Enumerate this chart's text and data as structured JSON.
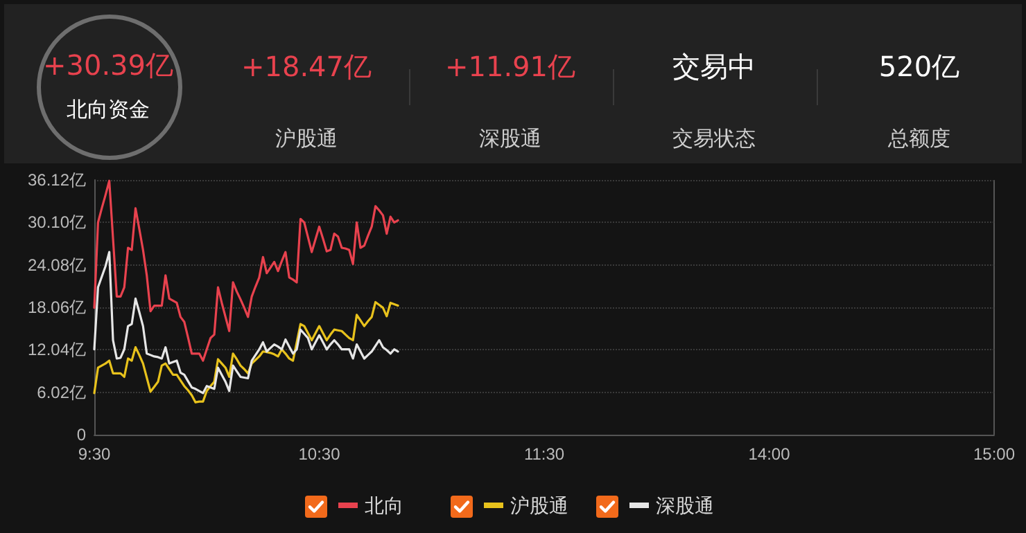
{
  "chart_data": {
    "type": "line",
    "annotations": [
      "+30.39亿",
      "北向资金",
      "+18.47亿",
      "沪股通",
      "+11.91亿",
      "深股通",
      "交易中",
      "交易状态",
      "520亿",
      "总额度"
    ],
    "categories": [
      "9:30",
      null,
      null,
      null,
      null,
      null,
      null,
      null,
      null,
      null,
      null,
      null,
      null,
      null,
      null,
      null,
      null,
      null,
      null,
      null,
      null,
      null,
      null,
      null,
      null,
      null,
      null,
      null,
      null,
      null,
      null,
      null,
      null,
      null,
      null,
      null,
      null,
      null,
      null,
      null,
      null,
      null,
      null,
      null,
      null,
      null,
      null,
      null,
      null,
      null,
      null,
      null,
      null,
      null,
      null,
      null,
      null,
      null,
      null,
      null,
      "10:30",
      null,
      null,
      null,
      null,
      null,
      null,
      null,
      null,
      null,
      null,
      null,
      null,
      null,
      null,
      null,
      null,
      null,
      null,
      null,
      null,
      null,
      null,
      null,
      null,
      null,
      null,
      null,
      null,
      null,
      null,
      null,
      null,
      null,
      null,
      null,
      null,
      null,
      null,
      null,
      null,
      null,
      null,
      null,
      null,
      null,
      null,
      null,
      null,
      null,
      null,
      null,
      null,
      null,
      null,
      null,
      null,
      null,
      null,
      null,
      "11:30",
      null,
      null,
      null,
      null,
      null,
      null,
      null,
      null,
      null,
      null,
      null,
      null,
      null,
      null,
      null,
      null,
      null,
      null,
      null,
      null,
      null,
      null,
      null,
      null,
      null,
      null,
      null,
      null,
      null,
      null,
      null,
      null,
      null,
      null,
      null,
      null,
      null,
      null,
      null,
      null,
      null,
      null,
      null,
      null,
      null,
      null,
      null,
      null,
      null,
      null,
      null,
      null,
      null,
      null,
      null,
      null,
      null,
      null,
      null,
      "14:00",
      null,
      null,
      null,
      null,
      null,
      null,
      null,
      null,
      null,
      null,
      null,
      null,
      null,
      null,
      null,
      null,
      null,
      null,
      null,
      null,
      null,
      null,
      null,
      null,
      null,
      null,
      null,
      null,
      null,
      null,
      null,
      null,
      null,
      null,
      null,
      null,
      null,
      null,
      null,
      null,
      null,
      null,
      null,
      null,
      null,
      null,
      null,
      null,
      null,
      null,
      null,
      null,
      null,
      null,
      null,
      null,
      null,
      null,
      null,
      "15:00"
    ],
    "ylim": [
      0,
      36.12
    ],
    "yticks": [
      {
        "value": 0,
        "label": "0"
      },
      {
        "value": 6.02,
        "label": "6.02亿"
      },
      {
        "value": 12.04,
        "label": "12.04亿"
      },
      {
        "value": 18.06,
        "label": "18.06亿"
      },
      {
        "value": 24.08,
        "label": "24.08亿"
      },
      {
        "value": 30.1,
        "label": "30.10亿"
      },
      {
        "value": 36.12,
        "label": "36.12亿"
      }
    ],
    "grid": "y",
    "legend": "bottom",
    "marker": "none",
    "line_style": "solid",
    "series": [
      {
        "name": "北向",
        "color": "#e8424e",
        "values": [
          18.0,
          30.1,
          32.1,
          34.0,
          36.0,
          27.8,
          19.6,
          19.6,
          20.9,
          26.5,
          26.2,
          32.1,
          29.2,
          26.2,
          22.6,
          17.5,
          18.3,
          18.3,
          18.3,
          22.6,
          19.3,
          19.0,
          18.7,
          16.7,
          16.0,
          13.8,
          11.5,
          11.5,
          11.5,
          10.5,
          12.1,
          13.7,
          14.2,
          20.9,
          18.7,
          16.7,
          14.7,
          21.6,
          20.3,
          19.2,
          18.0,
          16.7,
          19.6,
          21.0,
          22.3,
          25.2,
          22.9,
          23.7,
          24.5,
          23.2,
          24.6,
          25.9,
          22.3,
          22.0,
          21.6,
          30.6,
          30.1,
          28.0,
          25.9,
          27.7,
          29.5,
          27.8,
          26.0,
          26.2,
          28.5,
          28.1,
          26.5,
          26.4,
          26.2,
          24.2,
          30.1,
          26.5,
          26.8,
          28.2,
          29.5,
          32.4,
          31.8,
          31.1,
          28.5,
          30.9,
          30.1,
          30.4,
          null,
          null,
          null,
          null,
          null,
          null,
          null,
          null,
          null,
          null,
          null,
          null,
          null,
          null,
          null,
          null,
          null,
          null,
          null,
          null,
          null,
          null,
          null,
          null,
          null,
          null,
          null,
          null,
          null,
          null,
          null,
          null,
          null,
          null,
          null,
          null,
          null,
          null,
          null,
          null,
          null,
          null,
          null,
          null,
          null,
          null,
          null,
          null,
          null,
          null,
          null,
          null,
          null,
          null,
          null,
          null,
          null,
          null,
          null,
          null,
          null,
          null,
          null,
          null,
          null,
          null,
          null,
          null,
          null,
          null,
          null,
          null,
          null,
          null,
          null,
          null,
          null,
          null,
          null,
          null,
          null,
          null,
          null,
          null,
          null,
          null,
          null,
          null,
          null,
          null,
          null,
          null,
          null,
          null,
          null,
          null,
          null,
          null,
          null,
          null,
          null,
          null,
          null,
          null,
          null,
          null,
          null,
          null,
          null,
          null,
          null,
          null,
          null,
          null,
          null,
          null,
          null,
          null,
          null,
          null,
          null,
          null,
          null,
          null,
          null,
          null,
          null,
          null,
          null,
          null,
          null,
          null,
          null,
          null,
          null,
          null,
          null,
          null,
          null,
          null,
          null,
          null,
          null,
          null,
          null,
          null,
          null,
          null,
          null,
          null,
          null,
          null,
          null,
          null,
          null,
          null,
          null,
          null,
          null
        ]
      },
      {
        "name": "沪股通",
        "color": "#e8c21c",
        "values": [
          5.9,
          9.5,
          9.8,
          10.1,
          10.5,
          8.7,
          8.7,
          8.7,
          8.2,
          10.8,
          10.5,
          12.4,
          11.3,
          10.1,
          8.1,
          6.1,
          6.8,
          7.5,
          9.8,
          10.1,
          9.3,
          8.5,
          8.5,
          7.7,
          6.9,
          6.3,
          5.6,
          4.6,
          4.7,
          4.7,
          6.2,
          6.9,
          7.5,
          10.7,
          10.1,
          9.5,
          8.2,
          11.5,
          10.7,
          9.8,
          9.3,
          8.7,
          10.1,
          10.6,
          11.1,
          11.8,
          11.7,
          11.6,
          11.4,
          11.1,
          12.1,
          11.5,
          10.8,
          10.5,
          13.1,
          15.7,
          15.4,
          14.4,
          13.4,
          14.4,
          15.4,
          14.4,
          13.4,
          14.2,
          14.9,
          14.8,
          14.7,
          14.2,
          13.7,
          13.4,
          17.0,
          16.2,
          15.4,
          16.1,
          16.7,
          18.8,
          18.4,
          18.0,
          16.8,
          18.7,
          18.5,
          18.3,
          null,
          null,
          null,
          null,
          null,
          null,
          null,
          null,
          null,
          null,
          null,
          null,
          null,
          null,
          null,
          null,
          null,
          null,
          null,
          null,
          null,
          null,
          null,
          null,
          null,
          null,
          null,
          null,
          null,
          null,
          null,
          null,
          null,
          null,
          null,
          null,
          null,
          null,
          null,
          null,
          null,
          null,
          null,
          null,
          null,
          null,
          null,
          null,
          null,
          null,
          null,
          null,
          null,
          null,
          null,
          null,
          null,
          null,
          null,
          null,
          null,
          null,
          null,
          null,
          null,
          null,
          null,
          null,
          null,
          null,
          null,
          null,
          null,
          null,
          null,
          null,
          null,
          null,
          null,
          null,
          null,
          null,
          null,
          null,
          null,
          null,
          null,
          null,
          null,
          null,
          null,
          null,
          null,
          null,
          null,
          null,
          null,
          null,
          null,
          null,
          null,
          null,
          null,
          null,
          null,
          null,
          null,
          null,
          null,
          null,
          null,
          null,
          null,
          null,
          null,
          null,
          null,
          null,
          null,
          null,
          null,
          null,
          null,
          null,
          null,
          null,
          null,
          null,
          null,
          null,
          null,
          null,
          null,
          null,
          null,
          null,
          null,
          null,
          null,
          null,
          null,
          null,
          null,
          null,
          null,
          null,
          null,
          null,
          null,
          null,
          null,
          null,
          null,
          null,
          null,
          null,
          null,
          null,
          null
        ]
      },
      {
        "name": "深股通",
        "color": "#e6e6e6",
        "values": [
          12.1,
          20.9,
          22.4,
          23.9,
          25.9,
          13.4,
          10.8,
          10.9,
          12.1,
          15.4,
          15.7,
          19.3,
          17.4,
          15.4,
          11.5,
          11.3,
          11.1,
          11.0,
          10.8,
          12.4,
          10.1,
          10.3,
          10.5,
          8.8,
          8.5,
          7.6,
          6.7,
          6.5,
          6.2,
          5.9,
          6.9,
          6.7,
          6.5,
          9.5,
          8.5,
          7.5,
          6.2,
          9.8,
          9.0,
          8.2,
          8.1,
          8.0,
          10.5,
          11.3,
          12.1,
          13.1,
          11.8,
          12.3,
          12.8,
          12.5,
          12.1,
          13.5,
          12.5,
          11.5,
          12.1,
          14.9,
          14.3,
          13.7,
          12.1,
          13.1,
          14.1,
          13.1,
          12.1,
          12.8,
          13.4,
          12.8,
          12.1,
          12.1,
          12.1,
          10.8,
          12.8,
          11.8,
          10.8,
          11.3,
          11.8,
          12.6,
          13.4,
          12.4,
          12.0,
          11.5,
          12.1,
          11.8,
          null,
          null,
          null,
          null,
          null,
          null,
          null,
          null,
          null,
          null,
          null,
          null,
          null,
          null,
          null,
          null,
          null,
          null,
          null,
          null,
          null,
          null,
          null,
          null,
          null,
          null,
          null,
          null,
          null,
          null,
          null,
          null,
          null,
          null,
          null,
          null,
          null,
          null,
          null,
          null,
          null,
          null,
          null,
          null,
          null,
          null,
          null,
          null,
          null,
          null,
          null,
          null,
          null,
          null,
          null,
          null,
          null,
          null,
          null,
          null,
          null,
          null,
          null,
          null,
          null,
          null,
          null,
          null,
          null,
          null,
          null,
          null,
          null,
          null,
          null,
          null,
          null,
          null,
          null,
          null,
          null,
          null,
          null,
          null,
          null,
          null,
          null,
          null,
          null,
          null,
          null,
          null,
          null,
          null,
          null,
          null,
          null,
          null,
          null,
          null,
          null,
          null,
          null,
          null,
          null,
          null,
          null,
          null,
          null,
          null,
          null,
          null,
          null,
          null,
          null,
          null,
          null,
          null,
          null,
          null,
          null,
          null,
          null,
          null,
          null,
          null,
          null,
          null,
          null,
          null,
          null,
          null,
          null,
          null,
          null,
          null,
          null,
          null,
          null,
          null,
          null,
          null,
          null,
          null,
          null,
          null,
          null,
          null,
          null,
          null,
          null,
          null,
          null,
          null,
          null,
          null,
          null,
          null,
          null
        ]
      }
    ]
  }
}
